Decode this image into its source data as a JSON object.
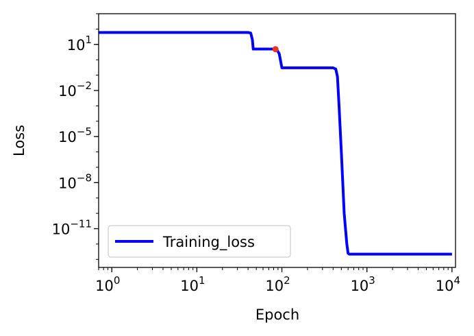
{
  "chart_data": {
    "type": "line",
    "xlabel": "Epoch",
    "ylabel": "Loss",
    "xscale": "log",
    "yscale": "log",
    "xlim": [
      0.7,
      11000
    ],
    "ylim": [
      3e-14,
      1000
    ],
    "x_ticks": [
      {
        "value": 1,
        "base": "10",
        "exp": "0"
      },
      {
        "value": 10,
        "base": "10",
        "exp": "1"
      },
      {
        "value": 100,
        "base": "10",
        "exp": "2"
      },
      {
        "value": 1000,
        "base": "10",
        "exp": "3"
      },
      {
        "value": 10000,
        "base": "10",
        "exp": "4"
      }
    ],
    "y_ticks": [
      {
        "value": 10,
        "base": "10",
        "exp": "1"
      },
      {
        "value": 0.01,
        "base": "10",
        "exp": "−2"
      },
      {
        "value": 1e-05,
        "base": "10",
        "exp": "−5"
      },
      {
        "value": 1e-08,
        "base": "10",
        "exp": "−8"
      },
      {
        "value": 1e-11,
        "base": "10",
        "exp": "−11"
      }
    ],
    "grid": false,
    "legend_position": "lower-left",
    "series": [
      {
        "name": "Training_loss",
        "color": "#0000ff",
        "x": [
          0.7,
          40,
          43,
          45,
          46,
          80,
          84,
          88,
          93,
          100,
          200,
          300,
          400,
          430,
          450,
          470,
          500,
          540,
          580,
          600,
          620,
          10000
        ],
        "y": [
          60,
          60,
          55,
          20,
          5,
          5,
          4.8,
          4.2,
          2.5,
          0.3,
          0.3,
          0.3,
          0.3,
          0.25,
          0.08,
          0.001,
          1e-06,
          1e-10,
          1e-12,
          2.5e-13,
          2.2e-13,
          2.2e-13
        ]
      }
    ],
    "highlight_points": [
      {
        "x": 84,
        "y": 4.9,
        "color": "#e8352a"
      }
    ]
  }
}
